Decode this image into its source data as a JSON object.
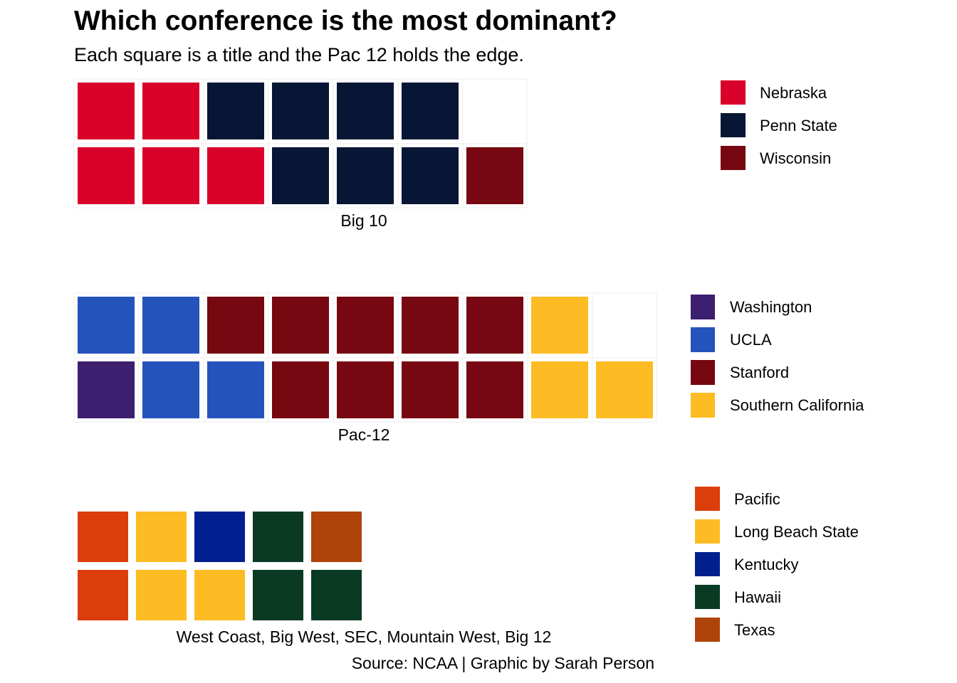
{
  "title": "Which conference is the most dominant?",
  "subtitle": "Each square is a title and the Pac 12 holds the edge.",
  "caption": "Source: NCAA | Graphic by Sarah Person",
  "chart_data": [
    {
      "type": "waffle",
      "label": "Big 10",
      "columns": [
        [
          "Nebraska",
          "Nebraska"
        ],
        [
          "Nebraska",
          "Nebraska"
        ],
        [
          "Nebraska",
          "Penn State"
        ],
        [
          "Penn State",
          "Penn State"
        ],
        [
          "Penn State",
          "Penn State"
        ],
        [
          "Penn State",
          "Penn State"
        ],
        [
          "Wisconsin"
        ]
      ],
      "legend": [
        {
          "name": "Nebraska",
          "color": "#D9002A",
          "count": 5
        },
        {
          "name": "Penn State",
          "color": "#061634",
          "count": 7
        },
        {
          "name": "Wisconsin",
          "color": "#770710",
          "count": 1
        }
      ]
    },
    {
      "type": "waffle",
      "label": "Pac-12",
      "columns": [
        [
          "Washington",
          "UCLA"
        ],
        [
          "UCLA",
          "UCLA"
        ],
        [
          "UCLA",
          "Stanford"
        ],
        [
          "Stanford",
          "Stanford"
        ],
        [
          "Stanford",
          "Stanford"
        ],
        [
          "Stanford",
          "Stanford"
        ],
        [
          "Stanford",
          "Stanford"
        ],
        [
          "Southern California",
          "Southern California"
        ],
        [
          "Southern California"
        ]
      ],
      "legend": [
        {
          "name": "Washington",
          "color": "#3C1F6E",
          "count": 1
        },
        {
          "name": "UCLA",
          "color": "#2553BC",
          "count": 4
        },
        {
          "name": "Stanford",
          "color": "#770710",
          "count": 9
        },
        {
          "name": "Southern California",
          "color": "#FDBC23",
          "count": 3
        }
      ]
    },
    {
      "type": "waffle",
      "label": "West Coast, Big West, SEC, Mountain West, Big 12",
      "columns": [
        [
          "Pacific",
          "Pacific"
        ],
        [
          "Long Beach State",
          "Long Beach State"
        ],
        [
          "Long Beach State",
          "Kentucky"
        ],
        [
          "Hawaii",
          "Hawaii"
        ],
        [
          "Hawaii",
          "Texas"
        ]
      ],
      "legend": [
        {
          "name": "Pacific",
          "color": "#DB3E0A",
          "count": 2
        },
        {
          "name": "Long Beach State",
          "color": "#FDBC23",
          "count": 3
        },
        {
          "name": "Kentucky",
          "color": "#00208F",
          "count": 1
        },
        {
          "name": "Hawaii",
          "color": "#0A3A24",
          "count": 3
        },
        {
          "name": "Texas",
          "color": "#B0430A",
          "count": 1
        }
      ]
    }
  ]
}
